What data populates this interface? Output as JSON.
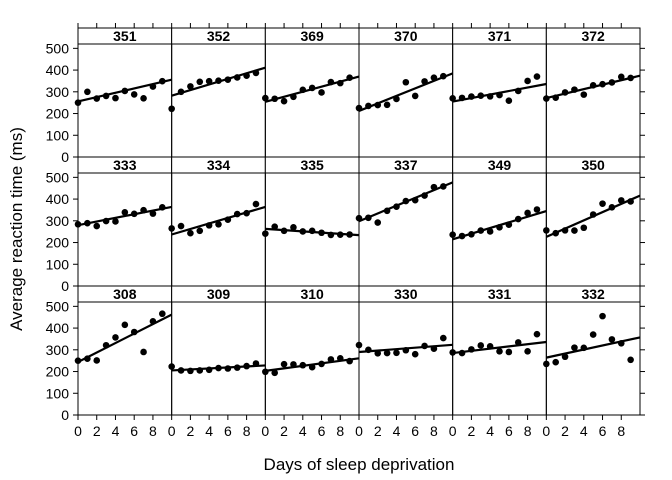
{
  "chart_data": {
    "type": "scatter",
    "title": "",
    "xlabel": "Days of sleep deprivation",
    "ylabel": "Average reaction time (ms)",
    "xlim": [
      0,
      10
    ],
    "ylim": [
      0,
      520
    ],
    "xticks": [
      "0",
      "2",
      "4",
      "6",
      "8"
    ],
    "yticks": [
      "0",
      "100",
      "200",
      "300",
      "400",
      "500"
    ],
    "grid": false,
    "legend": "none",
    "layout": {
      "rows": 3,
      "cols": 6,
      "strip_position": "top"
    },
    "series": [
      {
        "name": "351",
        "x": [
          0,
          1,
          2,
          3,
          4,
          5,
          6,
          7,
          8,
          9
        ],
        "y": [
          250,
          300,
          269,
          281,
          271,
          304,
          288,
          270,
          324,
          349
        ],
        "fit": [
          255.6,
          10.0
        ]
      },
      {
        "name": "352",
        "x": [
          0,
          1,
          2,
          3,
          4,
          5,
          6,
          7,
          8,
          9
        ],
        "y": [
          222,
          300,
          325,
          346,
          349,
          351,
          356,
          366,
          374,
          387
        ],
        "fit": [
          282.0,
          12.9
        ]
      },
      {
        "name": "369",
        "x": [
          0,
          1,
          2,
          3,
          4,
          5,
          6,
          7,
          8,
          9
        ],
        "y": [
          271,
          268,
          257,
          277,
          309,
          318,
          297,
          345,
          340,
          365
        ],
        "fit": [
          254.0,
          11.6
        ]
      },
      {
        "name": "370",
        "x": [
          0,
          1,
          2,
          3,
          4,
          5,
          6,
          7,
          8,
          9
        ],
        "y": [
          225,
          235,
          239,
          240,
          267,
          344,
          281,
          348,
          365,
          372
        ],
        "fit": [
          212.0,
          17.3
        ]
      },
      {
        "name": "371",
        "x": [
          0,
          1,
          2,
          3,
          4,
          5,
          6,
          7,
          8,
          9
        ],
        "y": [
          270,
          272,
          278,
          282,
          279,
          285,
          259,
          304,
          350,
          370
        ],
        "fit": [
          255.0,
          8.1
        ]
      },
      {
        "name": "372",
        "x": [
          0,
          1,
          2,
          3,
          4,
          5,
          6,
          7,
          8,
          9
        ],
        "y": [
          269,
          273,
          297,
          310,
          287,
          330,
          335,
          343,
          369,
          364
        ],
        "fit": [
          271.0,
          10.3
        ]
      },
      {
        "name": "333",
        "x": [
          0,
          1,
          2,
          3,
          4,
          5,
          6,
          7,
          8,
          9
        ],
        "y": [
          284,
          289,
          276,
          299,
          297,
          339,
          332,
          349,
          333,
          362
        ],
        "fit": [
          280.0,
          8.4
        ]
      },
      {
        "name": "334",
        "x": [
          0,
          1,
          2,
          3,
          4,
          5,
          6,
          7,
          8,
          9
        ],
        "y": [
          265,
          276,
          243,
          254,
          279,
          284,
          305,
          331,
          335,
          377
        ],
        "fit": [
          237.0,
          12.7
        ]
      },
      {
        "name": "335",
        "x": [
          0,
          1,
          2,
          3,
          4,
          5,
          6,
          7,
          8,
          9
        ],
        "y": [
          241,
          273,
          254,
          270,
          251,
          254,
          245,
          235,
          236,
          237
        ],
        "fit": [
          263.0,
          -2.9
        ]
      },
      {
        "name": "337",
        "x": [
          0,
          1,
          2,
          3,
          4,
          5,
          6,
          7,
          8,
          9
        ],
        "y": [
          312,
          314,
          292,
          346,
          365,
          391,
          395,
          416,
          455,
          458
        ],
        "fit": [
          298.0,
          17.9
        ]
      },
      {
        "name": "349",
        "x": [
          0,
          1,
          2,
          3,
          4,
          5,
          6,
          7,
          8,
          9
        ],
        "y": [
          236,
          230,
          238,
          255,
          251,
          270,
          282,
          308,
          336,
          352
        ],
        "fit": [
          215.0,
          13.0
        ]
      },
      {
        "name": "350",
        "x": [
          0,
          1,
          2,
          3,
          4,
          5,
          6,
          7,
          8,
          9
        ],
        "y": [
          256,
          243,
          256,
          255,
          268,
          329,
          379,
          362,
          394,
          389
        ],
        "fit": [
          226.0,
          19.0
        ]
      },
      {
        "name": "308",
        "x": [
          0,
          1,
          2,
          3,
          4,
          5,
          6,
          7,
          8,
          9
        ],
        "y": [
          250,
          259,
          251,
          321,
          357,
          415,
          382,
          290,
          431,
          466
        ],
        "fit": [
          244.0,
          21.8
        ]
      },
      {
        "name": "309",
        "x": [
          0,
          1,
          2,
          3,
          4,
          5,
          6,
          7,
          8,
          9
        ],
        "y": [
          223,
          205,
          203,
          205,
          208,
          216,
          214,
          218,
          225,
          237
        ],
        "fit": [
          205.0,
          2.3
        ]
      },
      {
        "name": "310",
        "x": [
          0,
          1,
          2,
          3,
          4,
          5,
          6,
          7,
          8,
          9
        ],
        "y": [
          199,
          194,
          234,
          233,
          229,
          220,
          235,
          256,
          261,
          248
        ],
        "fit": [
          203.0,
          5.8
        ]
      },
      {
        "name": "330",
        "x": [
          0,
          1,
          2,
          3,
          4,
          5,
          6,
          7,
          8,
          9
        ],
        "y": [
          322,
          300,
          284,
          285,
          286,
          298,
          280,
          318,
          305,
          354
        ],
        "fit": [
          290.0,
          3.3
        ]
      },
      {
        "name": "331",
        "x": [
          0,
          1,
          2,
          3,
          4,
          5,
          6,
          7,
          8,
          9
        ],
        "y": [
          288,
          285,
          302,
          320,
          316,
          293,
          290,
          334,
          293,
          372
        ],
        "fit": [
          285.0,
          5.1
        ]
      },
      {
        "name": "332",
        "x": [
          0,
          1,
          2,
          3,
          4,
          5,
          6,
          7,
          8,
          9
        ],
        "y": [
          235,
          243,
          268,
          310,
          309,
          370,
          455,
          348,
          330,
          254
        ],
        "fit": [
          264.0,
          9.3
        ]
      }
    ]
  }
}
